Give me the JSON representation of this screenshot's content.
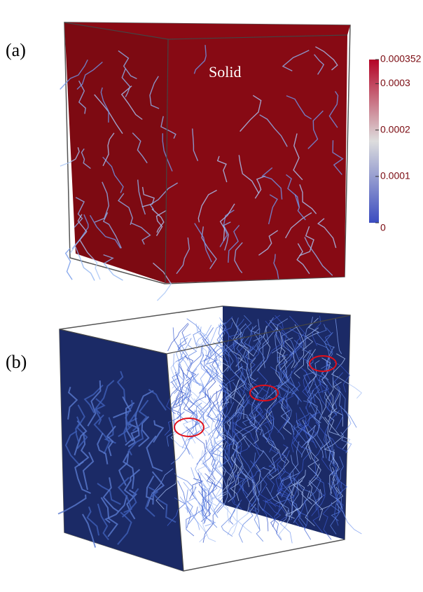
{
  "panels": [
    {
      "label": "(a)",
      "annotation": "Solid"
    },
    {
      "label": "(b)"
    }
  ],
  "colorbar": {
    "range": [
      0,
      0.000352
    ],
    "ticks": [
      0,
      0.0001,
      0.0002,
      0.0003,
      0.000352
    ]
  }
}
